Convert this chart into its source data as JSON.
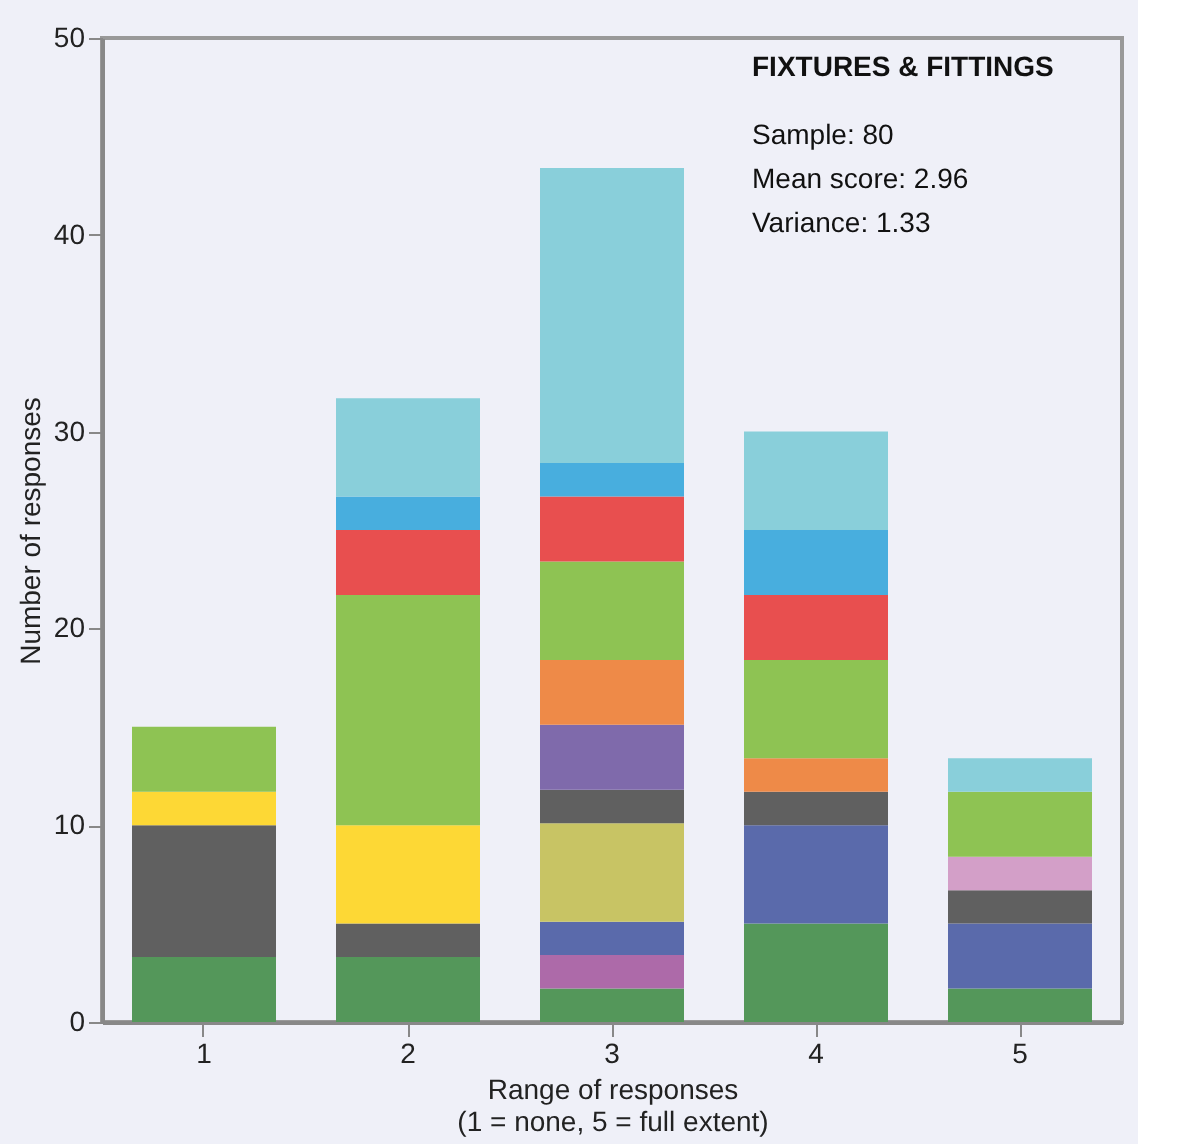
{
  "chart_data": {
    "type": "bar",
    "stacked": true,
    "xlabel": "Range of responses\n(1 = none, 5 = full extent)",
    "ylabel": "Number of responses",
    "categories": [
      "1",
      "2",
      "3",
      "4",
      "5"
    ],
    "ylim": [
      0,
      50
    ],
    "yticks": [
      0,
      10,
      20,
      30,
      40,
      50
    ],
    "grid": false,
    "legend": false,
    "annotations": [
      "FIXTURES & FITTINGS",
      "Sample: 80",
      "Mean score: 2.96",
      "Variance: 1.33"
    ],
    "series": [
      {
        "color": "#54975a",
        "values": [
          3.3,
          3.3,
          1.7,
          5,
          1.7
        ]
      },
      {
        "color": "#ad6aa9",
        "values": [
          null,
          null,
          1.7,
          null,
          null
        ]
      },
      {
        "color": "#5a6aab",
        "values": [
          null,
          null,
          1.7,
          5,
          3.3
        ]
      },
      {
        "color": "#c8c464",
        "values": [
          null,
          null,
          5,
          null,
          null
        ]
      },
      {
        "color": "#606060",
        "values": [
          6.7,
          1.7,
          1.7,
          1.7,
          1.7
        ]
      },
      {
        "color": "#fdd835",
        "values": [
          1.7,
          5,
          null,
          null,
          null
        ]
      },
      {
        "color": "#d39fc8",
        "values": [
          null,
          null,
          null,
          null,
          1.7
        ]
      },
      {
        "color": "#7f6aab",
        "values": [
          null,
          null,
          3.3,
          null,
          null
        ]
      },
      {
        "color": "#ee8a48",
        "values": [
          null,
          null,
          3.3,
          1.7,
          null
        ]
      },
      {
        "color": "#8ec353",
        "values": [
          3.3,
          11.7,
          5,
          5,
          3.3
        ]
      },
      {
        "color": "#e84f4f",
        "values": [
          null,
          3.3,
          3.3,
          3.3,
          null
        ]
      },
      {
        "color": "#48aede",
        "values": [
          null,
          1.7,
          1.7,
          3.3,
          null
        ]
      },
      {
        "color": "#89cfda",
        "values": [
          null,
          5,
          15,
          5,
          1.7
        ]
      }
    ]
  }
}
